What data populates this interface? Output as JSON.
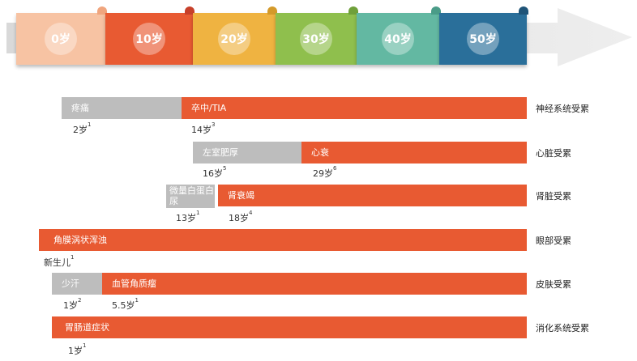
{
  "timeline": {
    "ages": [
      {
        "label": "0岁",
        "color": "#f7c3a3",
        "tab": "#f0a57e"
      },
      {
        "label": "10岁",
        "color": "#e85a32",
        "tab": "#c7402a"
      },
      {
        "label": "20岁",
        "color": "#efb341",
        "tab": "#d49a2a"
      },
      {
        "label": "30岁",
        "color": "#8fbf4d",
        "tab": "#6fa03a"
      },
      {
        "label": "40岁",
        "color": "#63b8a2",
        "tab": "#4a9c88"
      },
      {
        "label": "50岁",
        "color": "#2a6f9a",
        "tab": "#1f5478"
      }
    ]
  },
  "rows": [
    {
      "organ": "神经系统受累",
      "bars": [
        {
          "text": "疼痛",
          "kind": "grey"
        },
        {
          "text": "卒中/TIA",
          "kind": "orange"
        }
      ],
      "ages": [
        {
          "text": "2岁",
          "sup": "1"
        },
        {
          "text": "14岁",
          "sup": "3"
        }
      ]
    },
    {
      "organ": "心脏受累",
      "bars": [
        {
          "text": "左室肥厚",
          "kind": "grey"
        },
        {
          "text": "心衰",
          "kind": "orange"
        }
      ],
      "ages": [
        {
          "text": "16岁",
          "sup": "5"
        },
        {
          "text": "29岁",
          "sup": "6"
        }
      ]
    },
    {
      "organ": "肾脏受累",
      "bars": [
        {
          "text": "微量白蛋白尿",
          "kind": "grey"
        },
        {
          "text": "肾衰竭",
          "kind": "orange"
        }
      ],
      "ages": [
        {
          "text": "13岁",
          "sup": "1"
        },
        {
          "text": "18岁",
          "sup": "4"
        }
      ]
    },
    {
      "organ": "眼部受累",
      "bars": [
        {
          "text": "角膜涡状浑浊",
          "kind": "orange"
        }
      ],
      "ages": [
        {
          "text": "新生儿",
          "sup": "1"
        }
      ]
    },
    {
      "organ": "皮肤受累",
      "bars": [
        {
          "text": "少汗",
          "kind": "grey"
        },
        {
          "text": "血管角质瘤",
          "kind": "orange"
        }
      ],
      "ages": [
        {
          "text": "1岁",
          "sup": "2"
        },
        {
          "text": "5.5岁",
          "sup": "1"
        }
      ]
    },
    {
      "organ": "消化系统受累",
      "bars": [
        {
          "text": "胃肠道症状",
          "kind": "orange"
        }
      ],
      "ages": [
        {
          "text": "1岁",
          "sup": "1"
        }
      ]
    }
  ]
}
